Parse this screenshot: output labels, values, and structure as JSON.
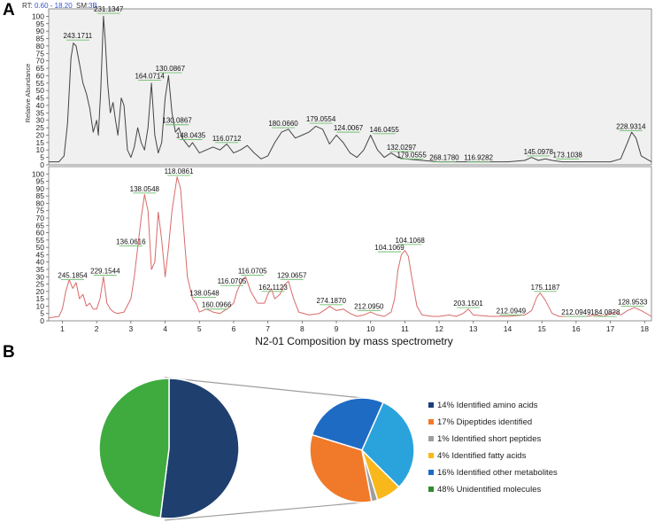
{
  "panels": {
    "a": "A",
    "b": "B"
  },
  "header": {
    "rt_label": "RT:",
    "rt_range": "0.60 - 18.20",
    "sm_label": "SM:",
    "sm_value": "3B"
  },
  "chart_data": [
    {
      "type": "line",
      "ylabel": "Relative Abundance",
      "ylim": [
        0,
        105
      ],
      "xlim": [
        0.6,
        18.2
      ],
      "yticks": [
        0,
        5,
        10,
        15,
        20,
        25,
        30,
        35,
        40,
        45,
        50,
        55,
        60,
        65,
        70,
        75,
        80,
        85,
        90,
        95,
        100
      ],
      "color": "#444444",
      "background": "#f0f0f0",
      "points": [
        [
          0.6,
          2
        ],
        [
          0.9,
          2
        ],
        [
          1.05,
          6
        ],
        [
          1.15,
          28
        ],
        [
          1.25,
          72
        ],
        [
          1.32,
          82
        ],
        [
          1.4,
          80
        ],
        [
          1.5,
          68
        ],
        [
          1.6,
          55
        ],
        [
          1.7,
          48
        ],
        [
          1.8,
          38
        ],
        [
          1.9,
          22
        ],
        [
          2.0,
          30
        ],
        [
          2.05,
          20
        ],
        [
          2.12,
          50
        ],
        [
          2.2,
          100
        ],
        [
          2.25,
          85
        ],
        [
          2.32,
          55
        ],
        [
          2.4,
          35
        ],
        [
          2.48,
          42
        ],
        [
          2.55,
          30
        ],
        [
          2.62,
          20
        ],
        [
          2.72,
          45
        ],
        [
          2.8,
          40
        ],
        [
          2.9,
          10
        ],
        [
          3.0,
          5
        ],
        [
          3.1,
          12
        ],
        [
          3.2,
          25
        ],
        [
          3.3,
          15
        ],
        [
          3.4,
          10
        ],
        [
          3.5,
          25
        ],
        [
          3.6,
          55
        ],
        [
          3.7,
          20
        ],
        [
          3.8,
          8
        ],
        [
          3.9,
          15
        ],
        [
          4.0,
          45
        ],
        [
          4.1,
          60
        ],
        [
          4.2,
          35
        ],
        [
          4.3,
          22
        ],
        [
          4.4,
          25
        ],
        [
          4.5,
          18
        ],
        [
          4.6,
          15
        ],
        [
          4.7,
          12
        ],
        [
          4.8,
          15
        ],
        [
          5.0,
          8
        ],
        [
          5.2,
          10
        ],
        [
          5.4,
          12
        ],
        [
          5.6,
          10
        ],
        [
          5.8,
          14
        ],
        [
          6.0,
          8
        ],
        [
          6.2,
          10
        ],
        [
          6.4,
          13
        ],
        [
          6.6,
          8
        ],
        [
          6.8,
          4
        ],
        [
          7.0,
          6
        ],
        [
          7.2,
          15
        ],
        [
          7.4,
          22
        ],
        [
          7.6,
          24
        ],
        [
          7.8,
          18
        ],
        [
          8.0,
          20
        ],
        [
          8.2,
          22
        ],
        [
          8.4,
          26
        ],
        [
          8.6,
          24
        ],
        [
          8.8,
          14
        ],
        [
          9.0,
          20
        ],
        [
          9.2,
          15
        ],
        [
          9.4,
          8
        ],
        [
          9.6,
          5
        ],
        [
          9.8,
          10
        ],
        [
          10.0,
          20
        ],
        [
          10.2,
          10
        ],
        [
          10.4,
          5
        ],
        [
          10.6,
          8
        ],
        [
          10.8,
          5
        ],
        [
          11.0,
          4
        ],
        [
          11.5,
          3
        ],
        [
          12.0,
          2
        ],
        [
          12.5,
          2
        ],
        [
          13.0,
          2
        ],
        [
          13.5,
          2
        ],
        [
          14.0,
          2
        ],
        [
          14.5,
          3
        ],
        [
          14.7,
          5
        ],
        [
          14.9,
          3
        ],
        [
          15.1,
          4
        ],
        [
          15.3,
          3
        ],
        [
          15.6,
          2
        ],
        [
          16.0,
          2
        ],
        [
          16.5,
          2
        ],
        [
          17.0,
          2
        ],
        [
          17.3,
          4
        ],
        [
          17.5,
          15
        ],
        [
          17.62,
          22
        ],
        [
          17.75,
          18
        ],
        [
          17.9,
          6
        ],
        [
          18.2,
          2
        ]
      ],
      "annotations": [
        {
          "label": "243.1711",
          "x": 1.45,
          "y": 84
        },
        {
          "label": "231.1347",
          "x": 2.35,
          "y": 102
        },
        {
          "label": "164.0714",
          "x": 3.55,
          "y": 57
        },
        {
          "label": "130.0867",
          "x": 4.15,
          "y": 62
        },
        {
          "label": "130.0867",
          "x": 4.35,
          "y": 27
        },
        {
          "label": "148.0435",
          "x": 4.75,
          "y": 17
        },
        {
          "label": "116.0712",
          "x": 5.8,
          "y": 15
        },
        {
          "label": "180.0660",
          "x": 7.45,
          "y": 25
        },
        {
          "label": "179.0554",
          "x": 8.55,
          "y": 28
        },
        {
          "label": "124.0067",
          "x": 9.35,
          "y": 22
        },
        {
          "label": "146.0455",
          "x": 10.4,
          "y": 21
        },
        {
          "label": "132.0297",
          "x": 10.9,
          "y": 9
        },
        {
          "label": "179.0555",
          "x": 11.2,
          "y": 4
        },
        {
          "label": "268.1780",
          "x": 12.15,
          "y": 2
        },
        {
          "label": "116.9282",
          "x": 13.15,
          "y": 2
        },
        {
          "label": "145.0978",
          "x": 14.9,
          "y": 6
        },
        {
          "label": "173.1038",
          "x": 15.75,
          "y": 4
        },
        {
          "label": "228.9314",
          "x": 17.6,
          "y": 23
        }
      ]
    },
    {
      "type": "line",
      "ylim": [
        0,
        105
      ],
      "xlim": [
        0.6,
        18.2
      ],
      "yticks": [
        0,
        5,
        10,
        15,
        20,
        25,
        30,
        35,
        40,
        45,
        50,
        55,
        60,
        65,
        70,
        75,
        80,
        85,
        90,
        95,
        100
      ],
      "xticks": [
        1,
        2,
        3,
        4,
        5,
        6,
        7,
        8,
        9,
        10,
        11,
        12,
        13,
        14,
        15,
        16,
        17,
        18
      ],
      "xlabel": "N2-01 Composition by mass spectrometry",
      "color": "#d96a6a",
      "points": [
        [
          0.6,
          2
        ],
        [
          0.9,
          3
        ],
        [
          1.0,
          8
        ],
        [
          1.1,
          20
        ],
        [
          1.2,
          28
        ],
        [
          1.3,
          22
        ],
        [
          1.4,
          26
        ],
        [
          1.5,
          15
        ],
        [
          1.6,
          18
        ],
        [
          1.7,
          10
        ],
        [
          1.8,
          12
        ],
        [
          1.9,
          8
        ],
        [
          2.0,
          8
        ],
        [
          2.1,
          15
        ],
        [
          2.2,
          30
        ],
        [
          2.3,
          12
        ],
        [
          2.4,
          8
        ],
        [
          2.5,
          6
        ],
        [
          2.6,
          5
        ],
        [
          2.8,
          6
        ],
        [
          3.0,
          15
        ],
        [
          3.1,
          30
        ],
        [
          3.2,
          50
        ],
        [
          3.3,
          70
        ],
        [
          3.4,
          86
        ],
        [
          3.5,
          75
        ],
        [
          3.6,
          35
        ],
        [
          3.7,
          40
        ],
        [
          3.8,
          74
        ],
        [
          3.9,
          55
        ],
        [
          4.0,
          30
        ],
        [
          4.1,
          50
        ],
        [
          4.2,
          75
        ],
        [
          4.35,
          98
        ],
        [
          4.45,
          90
        ],
        [
          4.55,
          60
        ],
        [
          4.65,
          30
        ],
        [
          4.8,
          15
        ],
        [
          4.9,
          12
        ],
        [
          5.0,
          6
        ],
        [
          5.2,
          8
        ],
        [
          5.4,
          6
        ],
        [
          5.6,
          5
        ],
        [
          5.8,
          8
        ],
        [
          6.0,
          12
        ],
        [
          6.1,
          20
        ],
        [
          6.25,
          28
        ],
        [
          6.35,
          30
        ],
        [
          6.5,
          20
        ],
        [
          6.7,
          12
        ],
        [
          6.9,
          12
        ],
        [
          7.0,
          18
        ],
        [
          7.1,
          22
        ],
        [
          7.2,
          15
        ],
        [
          7.35,
          18
        ],
        [
          7.5,
          25
        ],
        [
          7.6,
          27
        ],
        [
          7.75,
          15
        ],
        [
          7.9,
          6
        ],
        [
          8.2,
          4
        ],
        [
          8.5,
          5
        ],
        [
          8.7,
          8
        ],
        [
          8.8,
          10
        ],
        [
          9.0,
          7
        ],
        [
          9.2,
          8
        ],
        [
          9.4,
          5
        ],
        [
          9.6,
          3
        ],
        [
          9.8,
          4
        ],
        [
          10.0,
          6
        ],
        [
          10.2,
          4
        ],
        [
          10.4,
          3
        ],
        [
          10.6,
          6
        ],
        [
          10.7,
          15
        ],
        [
          10.8,
          35
        ],
        [
          10.9,
          45
        ],
        [
          11.0,
          48
        ],
        [
          11.1,
          44
        ],
        [
          11.2,
          30
        ],
        [
          11.35,
          10
        ],
        [
          11.5,
          4
        ],
        [
          11.8,
          3
        ],
        [
          12.0,
          3
        ],
        [
          12.3,
          4
        ],
        [
          12.5,
          3
        ],
        [
          12.7,
          5
        ],
        [
          12.85,
          8
        ],
        [
          13.0,
          4
        ],
        [
          13.5,
          3
        ],
        [
          14.0,
          3
        ],
        [
          14.5,
          4
        ],
        [
          14.7,
          7
        ],
        [
          14.85,
          16
        ],
        [
          14.95,
          19
        ],
        [
          15.1,
          14
        ],
        [
          15.3,
          5
        ],
        [
          15.5,
          3
        ],
        [
          16.0,
          3
        ],
        [
          16.3,
          3
        ],
        [
          16.6,
          4
        ],
        [
          16.8,
          3
        ],
        [
          17.0,
          5
        ],
        [
          17.1,
          6
        ],
        [
          17.3,
          4
        ],
        [
          17.5,
          7
        ],
        [
          17.7,
          9
        ],
        [
          17.9,
          7
        ],
        [
          18.2,
          3
        ]
      ],
      "annotations": [
        {
          "label": "245.1854",
          "x": 1.3,
          "y": 28
        },
        {
          "label": "229.1544",
          "x": 2.25,
          "y": 31
        },
        {
          "label": "136.0616",
          "x": 3.0,
          "y": 51
        },
        {
          "label": "138.0548",
          "x": 3.4,
          "y": 87
        },
        {
          "label": "118.0861",
          "x": 4.4,
          "y": 99
        },
        {
          "label": "138.0548",
          "x": 5.15,
          "y": 16
        },
        {
          "label": "160.0966",
          "x": 5.5,
          "y": 8
        },
        {
          "label": "116.0705",
          "x": 5.95,
          "y": 24
        },
        {
          "label": "116.0705",
          "x": 6.55,
          "y": 31
        },
        {
          "label": "162.1123",
          "x": 7.15,
          "y": 20
        },
        {
          "label": "129.0657",
          "x": 7.7,
          "y": 28
        },
        {
          "label": "274.1870",
          "x": 8.85,
          "y": 11
        },
        {
          "label": "212.0950",
          "x": 9.95,
          "y": 7
        },
        {
          "label": "104.1069",
          "x": 10.55,
          "y": 47
        },
        {
          "label": "104.1068",
          "x": 11.15,
          "y": 52
        },
        {
          "label": "203.1501",
          "x": 12.85,
          "y": 9
        },
        {
          "label": "212.0949",
          "x": 14.1,
          "y": 4
        },
        {
          "label": "175.1187",
          "x": 15.1,
          "y": 20
        },
        {
          "label": "212.0949",
          "x": 16.0,
          "y": 3
        },
        {
          "label": "184.0828",
          "x": 16.85,
          "y": 3
        },
        {
          "label": "128.9533",
          "x": 17.65,
          "y": 10
        }
      ]
    },
    {
      "type": "pie",
      "categories": [
        "Identified",
        "Unidentified molecules"
      ],
      "values": [
        52,
        48
      ],
      "colors": [
        "#1f3f6e",
        "#3fab3f"
      ]
    },
    {
      "type": "pie",
      "categories": [
        "Identified amino acids",
        "Dipeptides identified",
        "Identified short peptides",
        "Identified fatty acids",
        "Identified other metabolites"
      ],
      "values": [
        14,
        17,
        1,
        4,
        16
      ],
      "colors": [
        "#1e6bc4",
        "#f07a2a",
        "#9e9e9e",
        "#f8b81c",
        "#2aa3dc"
      ]
    }
  ],
  "legend": [
    {
      "label": "14% Identified amino acids",
      "color": "#1b3f7a"
    },
    {
      "label": "17% Dipeptides identified",
      "color": "#f07a2a"
    },
    {
      "label": "1% Identified short peptides",
      "color": "#9e9e9e"
    },
    {
      "label": "4% Identified fatty acids",
      "color": "#f8b81c"
    },
    {
      "label": "16% Identified other metabolites",
      "color": "#1e6bc4"
    },
    {
      "label": "48% Unidentified molecules",
      "color": "#2e8b2e"
    }
  ]
}
